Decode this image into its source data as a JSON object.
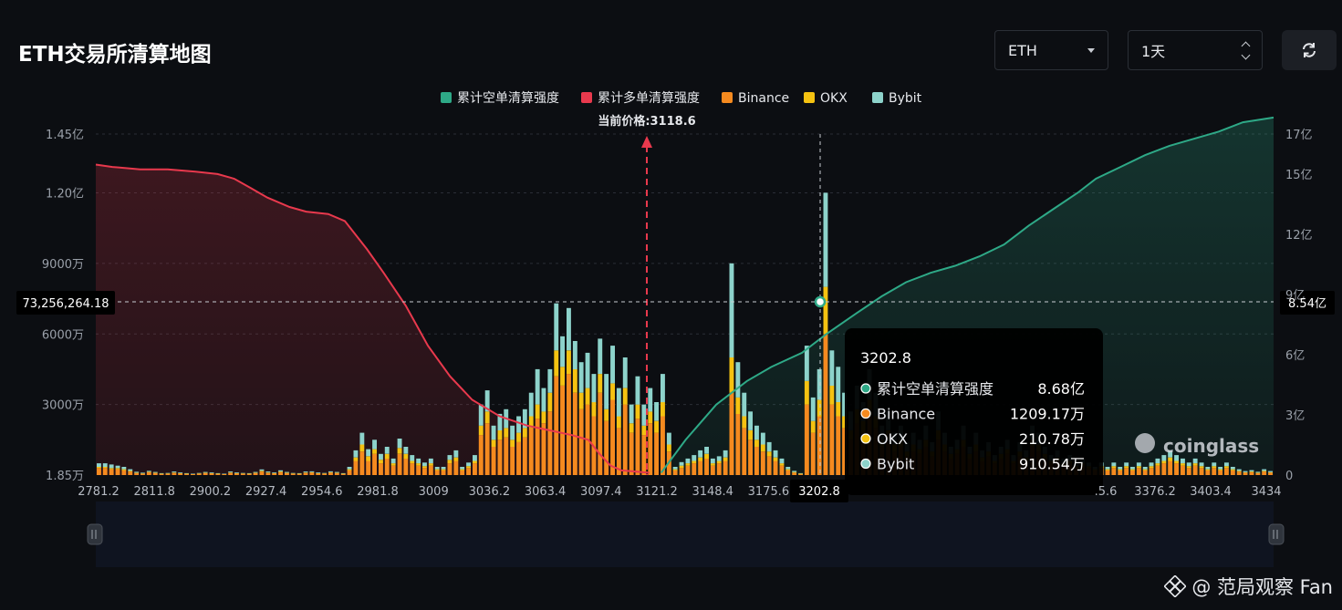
{
  "page": {
    "title": "ETH交易所清算地图",
    "asset_select": {
      "value": "ETH",
      "icon": "chevron-down-icon"
    },
    "period_select": {
      "value": "1天",
      "icon": "updown-chevron-icon"
    },
    "refresh_icon": "refresh-icon",
    "watermark": "@ 范局观察 Fan",
    "brand": "coinglass"
  },
  "chart_data": {
    "type": "bar",
    "legend": [
      {
        "label": "累计空单清算强度",
        "color": "#2ea987"
      },
      {
        "label": "累计多单清算强度",
        "color": "#e8394d"
      },
      {
        "label": "Binance",
        "color": "#f58a1f"
      },
      {
        "label": "OKX",
        "color": "#f5c211"
      },
      {
        "label": "Bybit",
        "color": "#8dd3cb"
      }
    ],
    "current_price_label": "当前价格:3118.6",
    "current_price": 3118.6,
    "x_ticks": [
      "2781.2",
      "2811.8",
      "2900.2",
      "2927.4",
      "2954.6",
      "2981.8",
      "3009",
      "3036.2",
      "3063.4",
      "3097.4",
      "3121.2",
      "3148.4",
      "3175.6",
      "3202.8",
      "3376.2",
      "3403.4",
      "3434"
    ],
    "x_tick_partial": ".5.6",
    "y_left_ticks": [
      "1.45亿",
      "1.20亿",
      "9000万",
      "6000万",
      "3000万",
      "1.85万"
    ],
    "y_left_values": [
      145000000,
      120000000,
      90000000,
      60000000,
      30000000,
      18500
    ],
    "y_right_ticks": [
      "17亿",
      "15亿",
      "12亿",
      "9亿",
      "6亿",
      "3亿",
      "0"
    ],
    "y_right_values": [
      1700000000,
      1500000000,
      1200000000,
      900000000,
      600000000,
      300000000,
      0
    ],
    "crosshair": {
      "price": "3202.8",
      "left_value": "73,256,264.18",
      "right_value": "8.54亿"
    },
    "tooltip": {
      "title": "3202.8",
      "rows": [
        {
          "label": "累计空单清算强度",
          "value": "8.68亿",
          "color": "#2ea987"
        },
        {
          "label": "Binance",
          "value": "1209.17万",
          "color": "#f58a1f"
        },
        {
          "label": "OKX",
          "value": "210.78万",
          "color": "#f5c211"
        },
        {
          "label": "Bybit",
          "value": "910.54万",
          "color": "#8dd3cb"
        }
      ]
    },
    "bars": [
      [
        3,
        0.5,
        1.5
      ],
      [
        3,
        0.5,
        1.5
      ],
      [
        2.5,
        0.5,
        1.5
      ],
      [
        2.5,
        0.5,
        1
      ],
      [
        2,
        0.5,
        1
      ],
      [
        1.5,
        0.3,
        0.7
      ],
      [
        0.8,
        0.2,
        0.4
      ],
      [
        0.6,
        0.1,
        0.3
      ],
      [
        1.2,
        0.2,
        0.4
      ],
      [
        0.8,
        0.2,
        0.3
      ],
      [
        0.5,
        0.1,
        0.2
      ],
      [
        0.6,
        0.1,
        0.2
      ],
      [
        0.9,
        0.2,
        0.4
      ],
      [
        0.7,
        0.1,
        0.3
      ],
      [
        0.5,
        0.1,
        0.2
      ],
      [
        0.4,
        0.1,
        0.1
      ],
      [
        0.6,
        0.1,
        0.2
      ],
      [
        0.8,
        0.2,
        0.3
      ],
      [
        0.7,
        0.1,
        0.3
      ],
      [
        0.5,
        0.1,
        0.2
      ],
      [
        0.4,
        0.1,
        0.1
      ],
      [
        0.9,
        0.2,
        0.4
      ],
      [
        0.7,
        0.1,
        0.3
      ],
      [
        0.6,
        0.1,
        0.2
      ],
      [
        0.5,
        0.1,
        0.2
      ],
      [
        0.8,
        0.2,
        0.3
      ],
      [
        1.5,
        0.3,
        0.6
      ],
      [
        0.9,
        0.2,
        0.4
      ],
      [
        0.7,
        0.1,
        0.3
      ],
      [
        1.2,
        0.3,
        0.5
      ],
      [
        0.8,
        0.2,
        0.3
      ],
      [
        0.6,
        0.1,
        0.2
      ],
      [
        0.5,
        0.1,
        0.2
      ],
      [
        0.9,
        0.2,
        0.4
      ],
      [
        1.0,
        0.2,
        0.4
      ],
      [
        0.7,
        0.1,
        0.3
      ],
      [
        0.6,
        0.1,
        0.2
      ],
      [
        1.0,
        0.2,
        0.4
      ],
      [
        0.8,
        0.2,
        0.3
      ],
      [
        0.5,
        0.1,
        0.2
      ],
      [
        2,
        0.5,
        1
      ],
      [
        6,
        1.5,
        3
      ],
      [
        10,
        3,
        5
      ],
      [
        6,
        2,
        3
      ],
      [
        9,
        2,
        4
      ],
      [
        5,
        1.5,
        2.5
      ],
      [
        7,
        2,
        3
      ],
      [
        4,
        1,
        2
      ],
      [
        9,
        2.5,
        4
      ],
      [
        7,
        2,
        3
      ],
      [
        5,
        1,
        2.5
      ],
      [
        4,
        1,
        2
      ],
      [
        3,
        0.8,
        1.5
      ],
      [
        4,
        1,
        2
      ],
      [
        2,
        0.5,
        1
      ],
      [
        2,
        0.5,
        1
      ],
      [
        5,
        1.5,
        2
      ],
      [
        6,
        1.5,
        3
      ],
      [
        2,
        0.5,
        1
      ],
      [
        3,
        0.8,
        1.5
      ],
      [
        5,
        1,
        2.5
      ],
      [
        17,
        4,
        9
      ],
      [
        22,
        5,
        9
      ],
      [
        12,
        3,
        6
      ],
      [
        15,
        4,
        7
      ],
      [
        16,
        4,
        8
      ],
      [
        12,
        3,
        6
      ],
      [
        14,
        4,
        7
      ],
      [
        16,
        4,
        8
      ],
      [
        20,
        5,
        10
      ],
      [
        24,
        6,
        15
      ],
      [
        22,
        5,
        10
      ],
      [
        27,
        8,
        10
      ],
      [
        42,
        11,
        20
      ],
      [
        38,
        8,
        13
      ],
      [
        43,
        10,
        18
      ],
      [
        35,
        10,
        12
      ],
      [
        28,
        7,
        13
      ],
      [
        30,
        7,
        15
      ],
      [
        25,
        6,
        12
      ],
      [
        35,
        8,
        15
      ],
      [
        23,
        5,
        15
      ],
      [
        32,
        7,
        16
      ],
      [
        20,
        5,
        12
      ],
      [
        30,
        7,
        13
      ],
      [
        18,
        4,
        8
      ],
      [
        24,
        6,
        12
      ],
      [
        17,
        4,
        9
      ],
      [
        22,
        5,
        10
      ],
      [
        18,
        5,
        8
      ],
      [
        25,
        6,
        12
      ],
      [
        10,
        3,
        5
      ],
      [
        2,
        0.5,
        1
      ],
      [
        3,
        1,
        1.5
      ],
      [
        4,
        1,
        2
      ],
      [
        5,
        1,
        2.5
      ],
      [
        6,
        1.5,
        3
      ],
      [
        7,
        2,
        3
      ],
      [
        4,
        1,
        2
      ],
      [
        5,
        1,
        2
      ],
      [
        6,
        1.5,
        3
      ],
      [
        35,
        15,
        40
      ],
      [
        26,
        7,
        15
      ],
      [
        20,
        5,
        10
      ],
      [
        15,
        4,
        8
      ],
      [
        12,
        3,
        6
      ],
      [
        10,
        3,
        5
      ],
      [
        8,
        2,
        4
      ],
      [
        6,
        1.5,
        3
      ],
      [
        4,
        1,
        2
      ],
      [
        2,
        0.5,
        1
      ],
      [
        1,
        0.3,
        0.5
      ],
      [
        0.5,
        0.1,
        0.2
      ],
      [
        30,
        10,
        15
      ],
      [
        18,
        5,
        10
      ],
      [
        25,
        7,
        13
      ],
      [
        60,
        20,
        40
      ],
      [
        30,
        8,
        15
      ],
      [
        25,
        6,
        15
      ],
      [
        20,
        5,
        10
      ],
      [
        15,
        4,
        8
      ],
      [
        22,
        6,
        10
      ],
      [
        18,
        5,
        8
      ],
      [
        25,
        7,
        13
      ],
      [
        20,
        5,
        10
      ],
      [
        12,
        3,
        6
      ],
      [
        15,
        4,
        8
      ],
      [
        10,
        3,
        5
      ],
      [
        12,
        3,
        6
      ],
      [
        8,
        2,
        4
      ],
      [
        10,
        3,
        5
      ],
      [
        9,
        2,
        4
      ],
      [
        12,
        3,
        6
      ],
      [
        8,
        2,
        4
      ],
      [
        15,
        4,
        8
      ],
      [
        10,
        3,
        5
      ],
      [
        7,
        2,
        3
      ],
      [
        9,
        2,
        4
      ],
      [
        12,
        3,
        6
      ],
      [
        7,
        2,
        3
      ],
      [
        10,
        3,
        5
      ],
      [
        6,
        1.5,
        3
      ],
      [
        8,
        2,
        4
      ],
      [
        5,
        1,
        2.5
      ],
      [
        7,
        2,
        3
      ],
      [
        9,
        2,
        4
      ],
      [
        5,
        1,
        2.5
      ],
      [
        8,
        2,
        4
      ],
      [
        6,
        1.5,
        3
      ],
      [
        12,
        3,
        6
      ],
      [
        10,
        3,
        5
      ],
      [
        7,
        2,
        3
      ],
      [
        5,
        1,
        2.5
      ],
      [
        6,
        1.5,
        3
      ],
      [
        4,
        1,
        2
      ],
      [
        5,
        1,
        2.5
      ],
      [
        3,
        0.8,
        1.5
      ],
      [
        4,
        1,
        2
      ],
      [
        3,
        0.8,
        1.5
      ],
      [
        2,
        0.5,
        1
      ],
      [
        3,
        0.8,
        1.5
      ],
      [
        2,
        0.5,
        1
      ],
      [
        3,
        0.8,
        1.5
      ],
      [
        2,
        0.5,
        1
      ],
      [
        3,
        0.8,
        1.5
      ],
      [
        2,
        0.5,
        1
      ],
      [
        3,
        0.8,
        1.5
      ],
      [
        2,
        0.5,
        1
      ],
      [
        3,
        0.8,
        1.5
      ],
      [
        4,
        1,
        2
      ],
      [
        5,
        1,
        2.5
      ],
      [
        6,
        1.5,
        3
      ],
      [
        5,
        1,
        2.5
      ],
      [
        4,
        1,
        2
      ],
      [
        3,
        0.8,
        1.5
      ],
      [
        4,
        1,
        2
      ],
      [
        3,
        0.8,
        1.5
      ],
      [
        2,
        0.5,
        1
      ],
      [
        3,
        0.8,
        1.5
      ],
      [
        2,
        0.5,
        1
      ],
      [
        3,
        0.8,
        1.5
      ],
      [
        2,
        0.5,
        1
      ],
      [
        1.5,
        0.3,
        0.7
      ],
      [
        1,
        0.2,
        0.5
      ],
      [
        1.2,
        0.3,
        0.6
      ],
      [
        0.8,
        0.2,
        0.4
      ],
      [
        1.5,
        0.3,
        0.7
      ],
      [
        1,
        0.2,
        0.5
      ]
    ],
    "bars_unit": "百万",
    "long_curve": [
      [
        0,
        1.32
      ],
      [
        0.03,
        1.31
      ],
      [
        0.08,
        1.3
      ],
      [
        0.13,
        1.3
      ],
      [
        0.18,
        1.29
      ],
      [
        0.22,
        1.28
      ],
      [
        0.25,
        1.26
      ],
      [
        0.28,
        1.22
      ],
      [
        0.31,
        1.18
      ],
      [
        0.35,
        1.14
      ],
      [
        0.38,
        1.12
      ],
      [
        0.42,
        1.11
      ],
      [
        0.45,
        1.08
      ],
      [
        0.49,
        0.96
      ],
      [
        0.52,
        0.86
      ],
      [
        0.56,
        0.72
      ],
      [
        0.6,
        0.55
      ],
      [
        0.64,
        0.42
      ],
      [
        0.68,
        0.32
      ],
      [
        0.73,
        0.25
      ],
      [
        0.78,
        0.21
      ],
      [
        0.82,
        0.19
      ],
      [
        0.86,
        0.17
      ],
      [
        0.89,
        0.15
      ],
      [
        0.91,
        0.09
      ],
      [
        0.93,
        0.04
      ],
      [
        0.95,
        0.02
      ],
      [
        1,
        0.01
      ]
    ],
    "short_curve": [
      [
        0,
        0.01
      ],
      [
        0.04,
        0.15
      ],
      [
        0.09,
        0.3
      ],
      [
        0.14,
        0.4
      ],
      [
        0.18,
        0.46
      ],
      [
        0.23,
        0.52
      ],
      [
        0.27,
        0.6
      ],
      [
        0.32,
        0.69
      ],
      [
        0.36,
        0.76
      ],
      [
        0.4,
        0.82
      ],
      [
        0.44,
        0.86
      ],
      [
        0.48,
        0.89
      ],
      [
        0.52,
        0.93
      ],
      [
        0.56,
        0.98
      ],
      [
        0.6,
        1.06
      ],
      [
        0.64,
        1.13
      ],
      [
        0.68,
        1.2
      ],
      [
        0.71,
        1.26
      ],
      [
        0.75,
        1.31
      ],
      [
        0.79,
        1.36
      ],
      [
        0.83,
        1.4
      ],
      [
        0.87,
        1.43
      ],
      [
        0.91,
        1.46
      ],
      [
        0.95,
        1.5
      ],
      [
        1,
        1.52
      ]
    ],
    "grid": true
  }
}
